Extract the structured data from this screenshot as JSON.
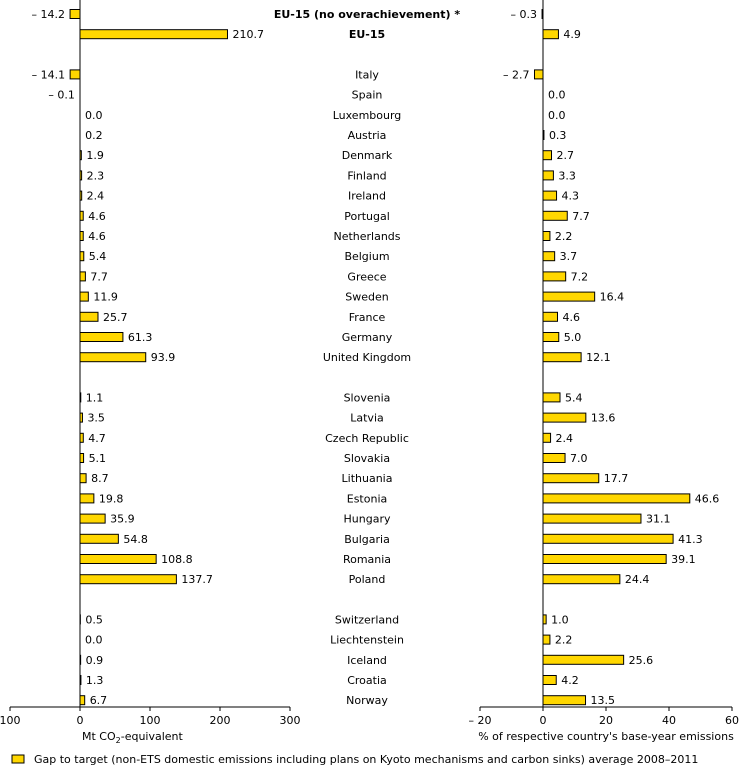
{
  "chart_data": [
    {
      "type": "bar",
      "orientation": "horizontal",
      "xlabel": "Mt CO₂-equivalent",
      "xlim": [
        -100,
        300
      ],
      "xticks": [
        -100,
        0,
        100,
        200,
        300
      ],
      "xtick_labels": [
        "100",
        "0",
        "100",
        "200",
        "300"
      ],
      "value_labels": [
        "– 14.2",
        "210.7",
        "– 14.1",
        "– 0.1",
        "0.0",
        "0.2",
        "1.9",
        "2.3",
        "2.4",
        "4.6",
        "4.6",
        "5.4",
        "7.7",
        "11.9",
        "25.7",
        "61.3",
        "93.9",
        "1.1",
        "3.5",
        "4.7",
        "5.1",
        "8.7",
        "19.8",
        "35.9",
        "54.8",
        "108.8",
        "137.7",
        "0.5",
        "0.0",
        "0.9",
        "1.3",
        "6.7"
      ],
      "values": [
        -14.2,
        210.7,
        -14.1,
        -0.1,
        0.0,
        0.2,
        1.9,
        2.3,
        2.4,
        4.6,
        4.6,
        5.4,
        7.7,
        11.9,
        25.7,
        61.3,
        93.9,
        1.1,
        3.5,
        4.7,
        5.1,
        8.7,
        19.8,
        35.9,
        54.8,
        108.8,
        137.7,
        0.5,
        0.0,
        0.9,
        1.3,
        6.7
      ]
    },
    {
      "type": "bar",
      "orientation": "horizontal",
      "xlabel": "% of respective country's base-year emissions",
      "xlim": [
        -20,
        60
      ],
      "xticks": [
        -20,
        0,
        20,
        40,
        60
      ],
      "xtick_labels": [
        "– 20",
        "0",
        "20",
        "40",
        "60"
      ],
      "value_labels": [
        "– 0.3",
        "4.9",
        "– 2.7",
        "0.0",
        "0.0",
        "0.3",
        "2.7",
        "3.3",
        "4.3",
        "7.7",
        "2.2",
        "3.7",
        "7.2",
        "16.4",
        "4.6",
        "5.0",
        "12.1",
        "5.4",
        "13.6",
        "2.4",
        "7.0",
        "17.7",
        "46.6",
        "31.1",
        "41.3",
        "39.1",
        "24.4",
        "1.0",
        "2.2",
        "25.6",
        "4.2",
        "13.5"
      ],
      "values": [
        -0.3,
        4.9,
        -2.7,
        0.0,
        0.0,
        0.3,
        2.7,
        3.3,
        4.3,
        7.7,
        2.2,
        3.7,
        7.2,
        16.4,
        4.6,
        5.0,
        12.1,
        5.4,
        13.6,
        2.4,
        7.0,
        17.7,
        46.6,
        31.1,
        41.3,
        39.1,
        24.4,
        1.0,
        2.2,
        25.6,
        4.2,
        13.5
      ]
    }
  ],
  "categories": [
    "EU-15 (no overachievement) *",
    "EU-15",
    "Italy",
    "Spain",
    "Luxembourg",
    "Austria",
    "Denmark",
    "Finland",
    "Ireland",
    "Portugal",
    "Netherlands",
    "Belgium",
    "Greece",
    "Sweden",
    "France",
    "Germany",
    "United Kingdom",
    "Slovenia",
    "Latvia",
    "Czech Republic",
    "Slovakia",
    "Lithuania",
    "Estonia",
    "Hungary",
    "Bulgaria",
    "Romania",
    "Poland",
    "Switzerland",
    "Liechtenstein",
    "Iceland",
    "Croatia",
    "Norway"
  ],
  "bold_categories": [
    "EU-15 (no overachievement) *",
    "EU-15"
  ],
  "legend": {
    "label": "Gap to target (non-ETS domestic emissions including plans on Kyoto mechanisms and carbon sinks) average 2008–2011",
    "position": "bottom-left"
  },
  "colors": {
    "bar_fill": "#ffd700",
    "bar_stroke": "#000000",
    "axis": "#000000"
  }
}
